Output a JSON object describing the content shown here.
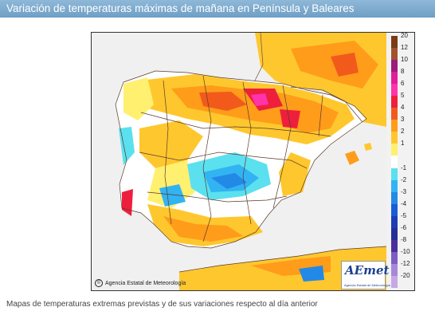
{
  "header": {
    "title": "Variación de temperaturas máximas de mañana en Península y Baleares"
  },
  "map": {
    "credit": "Agencia Estatal de Meteorología",
    "credit_icon": "copyright-icon",
    "logo_text": "AEmet",
    "logo_subtext": "Agencia Estatal de Meteorología"
  },
  "legend": {
    "items": [
      {
        "label": "20",
        "color": "#7a3a12"
      },
      {
        "label": "12",
        "color": "#a0522d"
      },
      {
        "label": "10",
        "color": "#9c1c7c"
      },
      {
        "label": "8",
        "color": "#e01d9a"
      },
      {
        "label": "6",
        "color": "#ff33aa"
      },
      {
        "label": "5",
        "color": "#ee1f3c"
      },
      {
        "label": "4",
        "color": "#f25a1c"
      },
      {
        "label": "3",
        "color": "#ff9c1a"
      },
      {
        "label": "2",
        "color": "#ffc72e"
      },
      {
        "label": "1",
        "color": "#fff070"
      },
      {
        "label": "",
        "color": "#ffffff"
      },
      {
        "label": "-1",
        "color": "#5be0ef"
      },
      {
        "label": "-2",
        "color": "#32b3f2"
      },
      {
        "label": "-3",
        "color": "#2289e6"
      },
      {
        "label": "-4",
        "color": "#1a5bd8"
      },
      {
        "label": "-5",
        "color": "#1e3cb4"
      },
      {
        "label": "-6",
        "color": "#252e96"
      },
      {
        "label": "-8",
        "color": "#4a2f9c"
      },
      {
        "label": "-10",
        "color": "#7e5cc4"
      },
      {
        "label": "-12",
        "color": "#a688d8"
      },
      {
        "label": "-20",
        "color": "#c7a8e6"
      }
    ]
  },
  "caption": "Mapas de temperaturas extremas previstas y de sus variaciones respecto al día anterior"
}
